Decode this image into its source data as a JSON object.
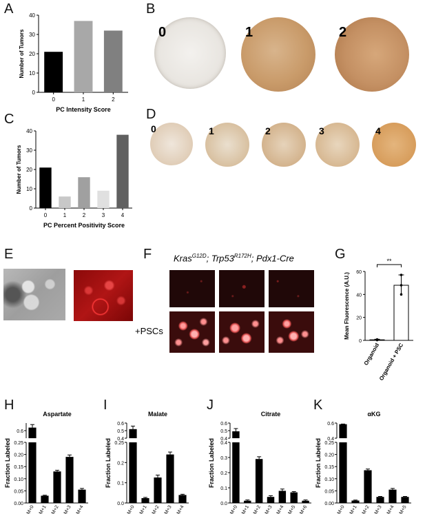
{
  "panel_labels": {
    "A": "A",
    "B": "B",
    "C": "C",
    "D": "D",
    "E": "E",
    "F": "F",
    "G": "G",
    "H": "H",
    "I": "I",
    "J": "J",
    "K": "K"
  },
  "panel_b": {
    "scores": [
      "0",
      "1",
      "2"
    ]
  },
  "panel_d": {
    "scores": [
      "0",
      "1",
      "2",
      "3",
      "4"
    ]
  },
  "panel_f": {
    "genotype_italic_parts": [
      {
        "base": "Kras",
        "sup": "G12D"
      },
      {
        "base": "; Trp53",
        "sup": "R172H"
      },
      {
        "base": "; Pdx1-Cre",
        "sup": ""
      }
    ],
    "row_label": "+PSCs"
  },
  "colors": {
    "black": "#000000",
    "dark_gray": "#555555",
    "mid_gray": "#888888",
    "light_gray": "#a8a8a8",
    "pale_gray": "#d0d0d0",
    "dab_brown": "#b7834e"
  },
  "chart_data": [
    {
      "id": "A",
      "type": "bar",
      "categories": [
        "0",
        "1",
        "2"
      ],
      "values": [
        21,
        37,
        32
      ],
      "colors": [
        "#000000",
        "#a8a8a8",
        "#808080"
      ],
      "xlabel": "PC Intensity Score",
      "ylabel": "Number of Tumors",
      "ylim": [
        0,
        40
      ],
      "yticks": [
        0,
        10,
        20,
        30,
        40
      ]
    },
    {
      "id": "C",
      "type": "bar",
      "categories": [
        "0",
        "1",
        "2",
        "3",
        "4"
      ],
      "values": [
        21,
        6,
        16,
        9,
        38
      ],
      "colors": [
        "#000000",
        "#c8c8c8",
        "#a0a0a0",
        "#e0e0e0",
        "#606060"
      ],
      "xlabel": "PC Percent Positivity Score",
      "ylabel": "Number of Tumors",
      "ylim": [
        0,
        40
      ],
      "yticks": [
        0,
        10,
        20,
        30,
        40
      ]
    },
    {
      "id": "G",
      "type": "bar",
      "categories": [
        "Organoid",
        "Organoid + PSC"
      ],
      "values": [
        0.5,
        48
      ],
      "errors": [
        0.5,
        9
      ],
      "points": [
        [
          0.2,
          0.5,
          0.8
        ],
        [
          40,
          48,
          57
        ]
      ],
      "ylabel": "Mean Fluorescence (A.U.)",
      "ylim": [
        0,
        60
      ],
      "yticks": [
        0,
        20,
        40,
        60
      ],
      "significance": "**"
    },
    {
      "id": "H",
      "type": "bar",
      "title": "Aspartate",
      "categories": [
        "M+0",
        "M+1",
        "M+2",
        "M+3",
        "M+4"
      ],
      "values": [
        0.62,
        0.03,
        0.13,
        0.19,
        0.055
      ],
      "errors": [
        0.02,
        0.002,
        0.005,
        0.008,
        0.005
      ],
      "ylabel": "Fraction Labeled",
      "broken_axis": true,
      "lower_ticks": [
        "0.00",
        "0.05",
        "0.10",
        "0.15",
        "0.20",
        "0.25"
      ],
      "upper_ticks": [
        "0.6"
      ]
    },
    {
      "id": "I",
      "type": "bar",
      "title": "Malate",
      "categories": [
        "M+0",
        "M+1",
        "M+2",
        "M+3",
        "M+4"
      ],
      "values": [
        0.5,
        0.02,
        0.105,
        0.2,
        0.033
      ],
      "errors": [
        0.05,
        0.003,
        0.01,
        0.01,
        0.003
      ],
      "ylabel": "Fraction Labeled",
      "broken_axis": true,
      "lower_ticks": [
        "0.0",
        "0.1",
        "0.2",
        "0.25"
      ],
      "upper_ticks": [
        "0.4",
        "0.5",
        "0.6"
      ]
    },
    {
      "id": "J",
      "type": "bar",
      "title": "Citrate",
      "categories": [
        "M+0",
        "M+1",
        "M+2",
        "M+3",
        "M+4",
        "M+5",
        "M+6"
      ],
      "values": [
        0.48,
        0.015,
        0.29,
        0.04,
        0.08,
        0.07,
        0.015
      ],
      "errors": [
        0.04,
        0.005,
        0.015,
        0.008,
        0.012,
        0.005,
        0.005
      ],
      "ylabel": "Fraction Labeled",
      "broken_axis": true,
      "lower_ticks": [
        "0.0",
        "0.1",
        "0.2",
        "0.3",
        "0.4"
      ],
      "upper_ticks": [
        "0.4",
        "0.5",
        "0.6"
      ]
    },
    {
      "id": "K",
      "type": "bar",
      "title": "αKG",
      "categories": [
        "M+0",
        "M+1",
        "M+2",
        "M+3",
        "M+4",
        "M+5"
      ],
      "values": [
        0.72,
        0.01,
        0.135,
        0.025,
        0.055,
        0.025
      ],
      "errors": [
        0.005,
        0.002,
        0.005,
        0.002,
        0.005,
        0.002
      ],
      "ylabel": "Fraction Labeled",
      "broken_axis": true,
      "lower_ticks": [
        "0.00",
        "0.05",
        "0.10",
        "0.15",
        "0.20",
        "0.25"
      ],
      "upper_ticks": [
        "0.4",
        "0.6"
      ]
    }
  ]
}
